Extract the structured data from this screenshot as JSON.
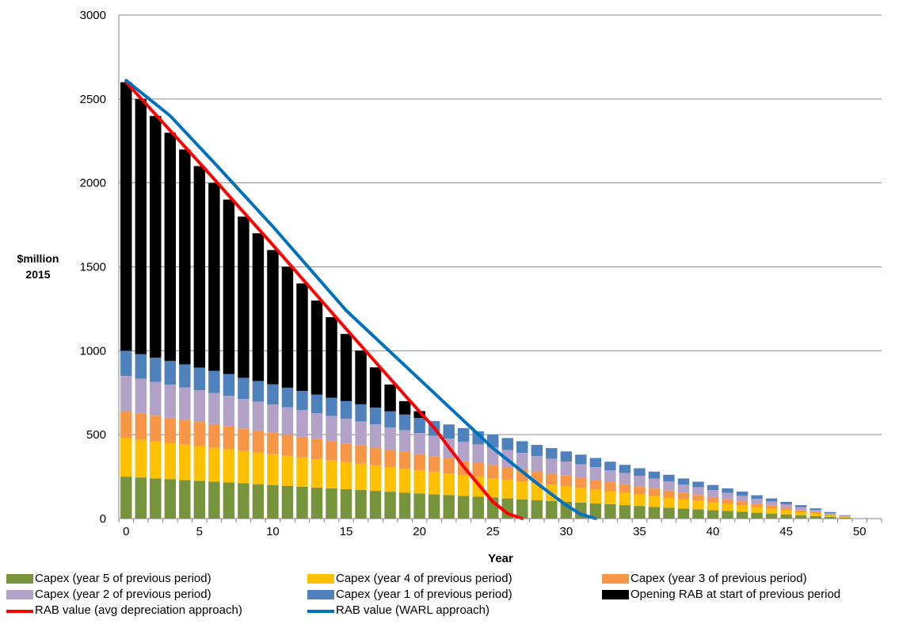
{
  "chart_data": {
    "type": "bar",
    "stacked": true,
    "xlabel": "Year",
    "ylabel_line1": "$million",
    "ylabel_line2": "2015",
    "xlim": [
      -0.5,
      51.5
    ],
    "ylim": [
      0,
      3000
    ],
    "x_ticks": [
      0,
      5,
      10,
      15,
      20,
      25,
      30,
      35,
      40,
      45,
      50
    ],
    "y_ticks": [
      0,
      500,
      1000,
      1500,
      2000,
      2500,
      3000
    ],
    "grid": "horizontal",
    "legend_position": "bottom",
    "categories": [
      0,
      1,
      2,
      3,
      4,
      5,
      6,
      7,
      8,
      9,
      10,
      11,
      12,
      13,
      14,
      15,
      16,
      17,
      18,
      19,
      20,
      21,
      22,
      23,
      24,
      25,
      26,
      27,
      28,
      29,
      30,
      31,
      32,
      33,
      34,
      35,
      36,
      37,
      38,
      39,
      40,
      41,
      42,
      43,
      44,
      45,
      46,
      47,
      48,
      49
    ],
    "series": [
      {
        "name": "Capex (year 5 of previous period)",
        "color": "#77933C",
        "values": [
          250,
          245,
          240,
          235,
          230,
          225,
          220,
          215,
          210,
          205,
          200,
          195,
          190,
          185,
          180,
          175,
          170,
          165,
          160,
          155,
          150,
          145,
          140,
          135,
          130,
          125,
          120,
          115,
          110,
          105,
          100,
          95,
          90,
          85,
          80,
          75,
          70,
          65,
          60,
          55,
          50,
          45,
          40,
          35,
          30,
          25,
          20,
          15,
          10,
          5
        ]
      },
      {
        "name": "Capex (year 4 of previous period)",
        "color": "#FFC000",
        "values": [
          230,
          225,
          220,
          216,
          211,
          207,
          202,
          198,
          193,
          189,
          184,
          179,
          175,
          170,
          166,
          161,
          157,
          152,
          147,
          143,
          138,
          134,
          129,
          124,
          120,
          115,
          110,
          106,
          101,
          97,
          92,
          88,
          83,
          78,
          74,
          69,
          64,
          60,
          55,
          51,
          46,
          41,
          37,
          32,
          28,
          23,
          18,
          14,
          9,
          5
        ]
      },
      {
        "name": "Capex (year 3 of previous period)",
        "color": "#F79646",
        "values": [
          160,
          157,
          153,
          150,
          147,
          144,
          141,
          138,
          134,
          131,
          128,
          125,
          122,
          118,
          115,
          112,
          109,
          106,
          102,
          99,
          96,
          93,
          90,
          86,
          83,
          80,
          77,
          74,
          70,
          67,
          64,
          61,
          58,
          54,
          51,
          48,
          45,
          42,
          38,
          35,
          32,
          29,
          26,
          22,
          19,
          16,
          13,
          10,
          6,
          3
        ]
      },
      {
        "name": "Capex (year 2 of previous period)",
        "color": "#B3A2C7",
        "values": [
          210,
          206,
          202,
          197,
          193,
          189,
          185,
          181,
          176,
          172,
          168,
          164,
          160,
          155,
          151,
          147,
          143,
          139,
          134,
          130,
          126,
          122,
          118,
          113,
          109,
          105,
          101,
          97,
          92,
          88,
          84,
          80,
          76,
          71,
          67,
          63,
          59,
          55,
          50,
          46,
          42,
          38,
          34,
          29,
          25,
          21,
          17,
          13,
          8,
          4
        ]
      },
      {
        "name": "Capex (year 1 of previous period)",
        "color": "#4F81BD",
        "values": [
          150,
          147,
          144,
          141,
          138,
          135,
          132,
          129,
          126,
          123,
          120,
          117,
          114,
          111,
          108,
          105,
          102,
          99,
          96,
          93,
          90,
          87,
          84,
          81,
          78,
          75,
          72,
          69,
          66,
          63,
          60,
          57,
          54,
          51,
          48,
          45,
          42,
          39,
          36,
          33,
          30,
          27,
          24,
          21,
          18,
          15,
          12,
          9,
          6,
          3
        ]
      },
      {
        "name": "Opening RAB at start of previous period",
        "color": "#000000",
        "values": [
          1600,
          1520,
          1440,
          1360,
          1280,
          1200,
          1120,
          1040,
          960,
          880,
          800,
          720,
          640,
          560,
          480,
          400,
          320,
          240,
          160,
          80,
          40,
          0,
          0,
          0,
          0,
          0,
          0,
          0,
          0,
          0,
          0,
          0,
          0,
          0,
          0,
          0,
          0,
          0,
          0,
          0,
          0,
          0,
          0,
          0,
          0,
          0,
          0,
          0,
          0,
          0
        ]
      }
    ],
    "lines": [
      {
        "name": "RAB value (avg depreciation approach)",
        "color": "#FF0000",
        "points": [
          [
            0,
            2600
          ],
          [
            5,
            2120
          ],
          [
            10,
            1630
          ],
          [
            15,
            1130
          ],
          [
            19,
            735
          ],
          [
            21,
            540
          ],
          [
            23,
            310
          ],
          [
            25,
            100
          ],
          [
            26,
            30
          ],
          [
            27,
            0
          ]
        ]
      },
      {
        "name": "RAB value (WARL approach)",
        "color": "#0070C0",
        "points": [
          [
            0,
            2610
          ],
          [
            3,
            2400
          ],
          [
            6,
            2120
          ],
          [
            10,
            1740
          ],
          [
            15,
            1240
          ],
          [
            20,
            830
          ],
          [
            25,
            420
          ],
          [
            28,
            210
          ],
          [
            30,
            80
          ],
          [
            31,
            25
          ],
          [
            32,
            0
          ]
        ]
      }
    ]
  },
  "legend": {
    "items": [
      {
        "label": "Capex (year 5 of previous period)",
        "color": "#77933C",
        "kind": "box"
      },
      {
        "label": "Capex (year 4 of previous period)",
        "color": "#FFC000",
        "kind": "box"
      },
      {
        "label": "Capex (year 3 of previous period)",
        "color": "#F79646",
        "kind": "box"
      },
      {
        "label": "Capex (year 2 of previous period)",
        "color": "#B3A2C7",
        "kind": "box"
      },
      {
        "label": "Capex (year 1 of previous period)",
        "color": "#4F81BD",
        "kind": "box"
      },
      {
        "label": "Opening RAB at start of previous period",
        "color": "#000000",
        "kind": "box"
      },
      {
        "label": "RAB value (avg depreciation approach)",
        "color": "#FF0000",
        "kind": "line"
      },
      {
        "label": "RAB value (WARL approach)",
        "color": "#0070C0",
        "kind": "line"
      }
    ]
  }
}
